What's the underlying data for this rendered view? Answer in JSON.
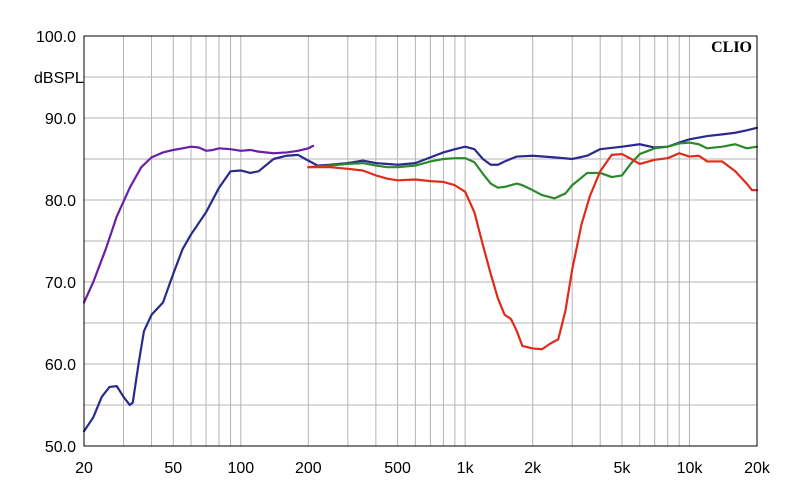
{
  "chart_data": {
    "type": "line",
    "brand": "CLIO",
    "ylabel": "dBSPL",
    "x_scale": "log",
    "xlim": [
      20,
      20000
    ],
    "ylim": [
      50,
      100
    ],
    "x_ticks": [
      {
        "value": 20,
        "label": "20"
      },
      {
        "value": 50,
        "label": "50"
      },
      {
        "value": 100,
        "label": "100"
      },
      {
        "value": 200,
        "label": "200"
      },
      {
        "value": 500,
        "label": "500"
      },
      {
        "value": 1000,
        "label": "1k"
      },
      {
        "value": 2000,
        "label": "2k"
      },
      {
        "value": 5000,
        "label": "5k"
      },
      {
        "value": 10000,
        "label": "10k"
      },
      {
        "value": 20000,
        "label": "20k"
      }
    ],
    "y_ticks": [
      {
        "value": 100,
        "label": "100.0"
      },
      {
        "value": 90,
        "label": "90.0"
      },
      {
        "value": 80,
        "label": "80.0"
      },
      {
        "value": 70,
        "label": "70.0"
      },
      {
        "value": 60,
        "label": "60.0"
      },
      {
        "value": 50,
        "label": "50.0"
      }
    ],
    "grid": true,
    "colors": {
      "purple": "#6a1fa8",
      "navy": "#2a2a8c",
      "green": "#2a8a2a",
      "red": "#e02a1a",
      "grid": "#b4b4b4",
      "axis": "#000000"
    },
    "series": [
      {
        "color": "#6a1fa8",
        "points": [
          [
            20,
            67.5
          ],
          [
            22,
            70
          ],
          [
            25,
            74
          ],
          [
            28,
            78
          ],
          [
            32,
            81.5
          ],
          [
            36,
            84
          ],
          [
            40,
            85.2
          ],
          [
            45,
            85.8
          ],
          [
            50,
            86.1
          ],
          [
            55,
            86.3
          ],
          [
            60,
            86.5
          ],
          [
            65,
            86.4
          ],
          [
            70,
            86.0
          ],
          [
            75,
            86.1
          ],
          [
            80,
            86.3
          ],
          [
            90,
            86.2
          ],
          [
            100,
            86.0
          ],
          [
            110,
            86.1
          ],
          [
            120,
            85.9
          ],
          [
            140,
            85.7
          ],
          [
            160,
            85.8
          ],
          [
            180,
            86.0
          ],
          [
            200,
            86.3
          ],
          [
            210,
            86.6
          ]
        ]
      },
      {
        "color": "#2a2a8c",
        "points": [
          [
            20,
            51.8
          ],
          [
            22,
            53.5
          ],
          [
            24,
            56
          ],
          [
            26,
            57.2
          ],
          [
            28,
            57.3
          ],
          [
            30,
            56
          ],
          [
            32,
            55
          ],
          [
            33,
            55.3
          ],
          [
            35,
            60
          ],
          [
            37,
            64
          ],
          [
            40,
            66
          ],
          [
            45,
            67.5
          ],
          [
            50,
            71
          ],
          [
            55,
            74
          ],
          [
            60,
            75.8
          ],
          [
            70,
            78.5
          ],
          [
            80,
            81.5
          ],
          [
            90,
            83.5
          ],
          [
            100,
            83.6
          ],
          [
            110,
            83.3
          ],
          [
            120,
            83.5
          ],
          [
            140,
            85.0
          ],
          [
            160,
            85.4
          ],
          [
            180,
            85.5
          ],
          [
            200,
            84.8
          ],
          [
            220,
            84.2
          ],
          [
            250,
            84.3
          ],
          [
            300,
            84.5
          ],
          [
            350,
            84.8
          ],
          [
            400,
            84.5
          ],
          [
            500,
            84.3
          ],
          [
            600,
            84.5
          ],
          [
            700,
            85.2
          ],
          [
            800,
            85.8
          ],
          [
            900,
            86.2
          ],
          [
            1000,
            86.5
          ],
          [
            1100,
            86.2
          ],
          [
            1200,
            85.0
          ],
          [
            1300,
            84.3
          ],
          [
            1400,
            84.3
          ],
          [
            1500,
            84.7
          ],
          [
            1700,
            85.3
          ],
          [
            2000,
            85.4
          ],
          [
            2500,
            85.2
          ],
          [
            3000,
            85.0
          ],
          [
            3500,
            85.4
          ],
          [
            4000,
            86.2
          ],
          [
            5000,
            86.5
          ],
          [
            6000,
            86.8
          ],
          [
            7000,
            86.4
          ],
          [
            8000,
            86.5
          ],
          [
            9000,
            87.0
          ],
          [
            10000,
            87.4
          ],
          [
            12000,
            87.8
          ],
          [
            14000,
            88.0
          ],
          [
            16000,
            88.2
          ],
          [
            18000,
            88.5
          ],
          [
            20000,
            88.8
          ]
        ]
      },
      {
        "color": "#2a8a2a",
        "points": [
          [
            200,
            84.0
          ],
          [
            220,
            84.1
          ],
          [
            250,
            84.2
          ],
          [
            300,
            84.4
          ],
          [
            350,
            84.5
          ],
          [
            400,
            84.2
          ],
          [
            450,
            84.0
          ],
          [
            500,
            84.0
          ],
          [
            600,
            84.2
          ],
          [
            700,
            84.7
          ],
          [
            800,
            85.0
          ],
          [
            900,
            85.1
          ],
          [
            1000,
            85.1
          ],
          [
            1100,
            84.6
          ],
          [
            1200,
            83.2
          ],
          [
            1300,
            82.0
          ],
          [
            1400,
            81.5
          ],
          [
            1500,
            81.6
          ],
          [
            1700,
            82.0
          ],
          [
            1800,
            81.8
          ],
          [
            2000,
            81.2
          ],
          [
            2200,
            80.6
          ],
          [
            2500,
            80.2
          ],
          [
            2800,
            80.8
          ],
          [
            3000,
            81.8
          ],
          [
            3500,
            83.3
          ],
          [
            4000,
            83.3
          ],
          [
            4500,
            82.8
          ],
          [
            5000,
            83.0
          ],
          [
            5500,
            84.5
          ],
          [
            6000,
            85.6
          ],
          [
            7000,
            86.3
          ],
          [
            8000,
            86.5
          ],
          [
            9000,
            86.9
          ],
          [
            10000,
            87.0
          ],
          [
            11000,
            86.8
          ],
          [
            12000,
            86.3
          ],
          [
            14000,
            86.5
          ],
          [
            16000,
            86.8
          ],
          [
            18000,
            86.3
          ],
          [
            20000,
            86.5
          ]
        ]
      },
      {
        "color": "#e02a1a",
        "points": [
          [
            200,
            84.0
          ],
          [
            250,
            84.0
          ],
          [
            300,
            83.8
          ],
          [
            350,
            83.6
          ],
          [
            400,
            83.0
          ],
          [
            450,
            82.6
          ],
          [
            500,
            82.4
          ],
          [
            600,
            82.5
          ],
          [
            700,
            82.3
          ],
          [
            800,
            82.2
          ],
          [
            900,
            81.8
          ],
          [
            1000,
            81.0
          ],
          [
            1100,
            78.5
          ],
          [
            1200,
            74.5
          ],
          [
            1300,
            71.0
          ],
          [
            1400,
            68.0
          ],
          [
            1500,
            66.0
          ],
          [
            1600,
            65.5
          ],
          [
            1700,
            64.0
          ],
          [
            1800,
            62.2
          ],
          [
            2000,
            61.9
          ],
          [
            2200,
            61.8
          ],
          [
            2400,
            62.5
          ],
          [
            2600,
            63.0
          ],
          [
            2800,
            66.5
          ],
          [
            3000,
            71.5
          ],
          [
            3300,
            77.0
          ],
          [
            3600,
            80.5
          ],
          [
            4000,
            83.5
          ],
          [
            4500,
            85.5
          ],
          [
            5000,
            85.6
          ],
          [
            5500,
            85.0
          ],
          [
            6000,
            84.4
          ],
          [
            7000,
            84.9
          ],
          [
            8000,
            85.1
          ],
          [
            9000,
            85.7
          ],
          [
            10000,
            85.3
          ],
          [
            11000,
            85.4
          ],
          [
            12000,
            84.7
          ],
          [
            14000,
            84.7
          ],
          [
            16000,
            83.5
          ],
          [
            18000,
            82.0
          ],
          [
            19000,
            81.2
          ],
          [
            20000,
            81.2
          ]
        ]
      }
    ]
  }
}
